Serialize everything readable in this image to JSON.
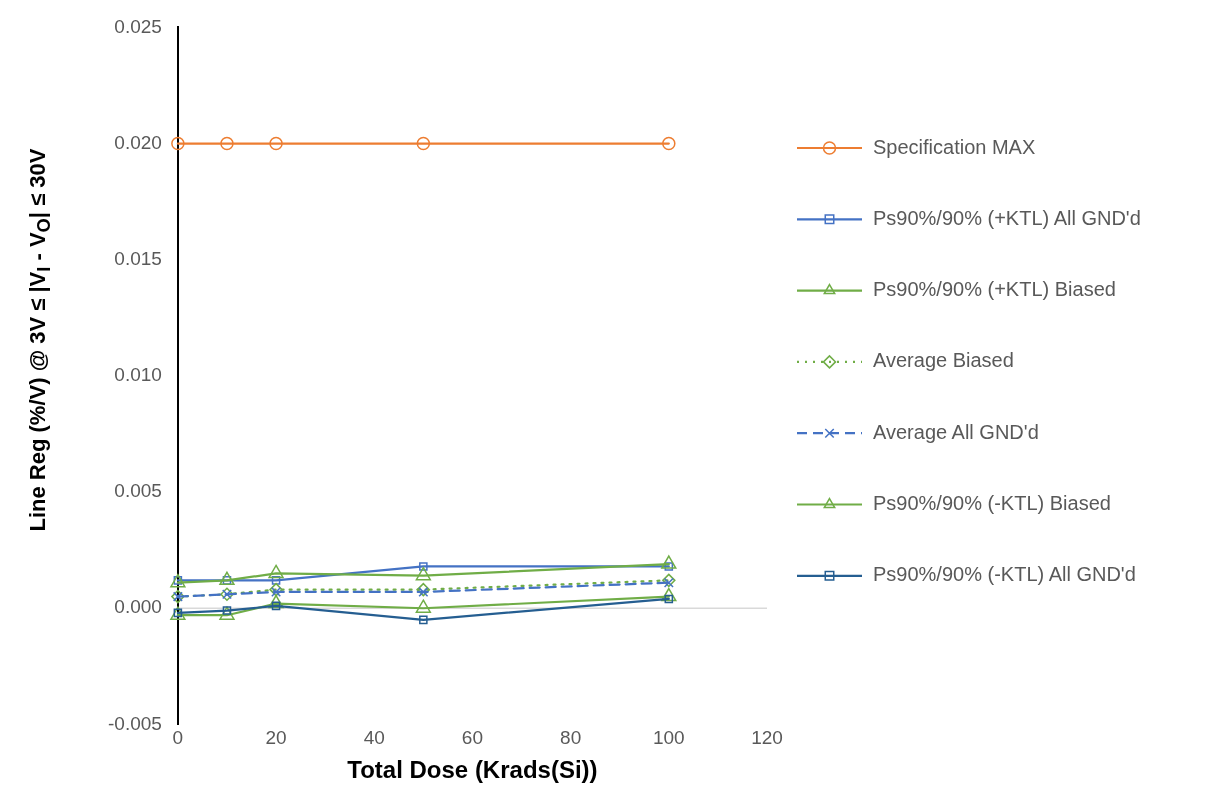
{
  "chart_data": {
    "type": "line",
    "xlabel": "Total Dose (Krads(Si))",
    "ylabel": "Line Reg (%/V) @ 3V ≤ |V$_{I}$ - V$_{O}$| ≤ 30V",
    "x": [
      0,
      10,
      20,
      50,
      100
    ],
    "xlim": [
      0,
      120
    ],
    "xticks": [
      0,
      20,
      40,
      60,
      80,
      100,
      120
    ],
    "ylim": [
      -0.005,
      0.025
    ],
    "yticks": [
      {
        "value": -0.005,
        "label": "-0.005"
      },
      {
        "value": 0,
        "label": "0.000"
      },
      {
        "value": 0.005,
        "label": "0.005"
      },
      {
        "value": 0.01,
        "label": "0.010"
      },
      {
        "value": 0.015,
        "label": "0.015"
      },
      {
        "value": 0.02,
        "label": "0.020"
      },
      {
        "value": 0.025,
        "label": "0.025"
      }
    ],
    "grid": false,
    "legend": "right",
    "ref_lines": [
      {
        "axis": "y",
        "value": 0,
        "label": null,
        "color": "#d9d9d9"
      }
    ],
    "series": [
      {
        "name": "Specification MAX",
        "color": "#ed7d31",
        "marker": "circle",
        "line_style": "solid",
        "values": [
          0.02,
          0.02,
          0.02,
          0.02,
          0.02
        ]
      },
      {
        "name": "Ps90%/90% (+KTL) All GND'd",
        "color": "#4472c4",
        "marker": "square",
        "line_style": "solid",
        "values": [
          0.0012,
          0.0012,
          0.0012,
          0.0018,
          0.0018
        ]
      },
      {
        "name": "Ps90%/90% (+KTL) Biased",
        "color": "#70ad47",
        "marker": "triangle",
        "line_style": "solid",
        "values": [
          0.0011,
          0.0012,
          0.0015,
          0.0014,
          0.0019
        ]
      },
      {
        "name": "Average Biased",
        "color": "#70ad47",
        "marker": "diamond",
        "line_style": "dotted",
        "values": [
          0.0005,
          0.0006,
          0.0008,
          0.0008,
          0.0012
        ]
      },
      {
        "name": "Average All GND'd",
        "color": "#4472c4",
        "marker": "cross",
        "line_style": "dashed",
        "values": [
          0.0005,
          0.0006,
          0.0007,
          0.0007,
          0.0011
        ]
      },
      {
        "name": "Ps90%/90% (-KTL) Biased",
        "color": "#70ad47",
        "marker": "triangle",
        "line_style": "solid",
        "values": [
          -0.0003,
          -0.0003,
          0.0002,
          0.0,
          0.0005
        ]
      },
      {
        "name": "Ps90%/90% (-KTL) All GND'd",
        "color": "#255e91",
        "marker": "square",
        "line_style": "solid",
        "values": [
          -0.0002,
          -0.0001,
          0.0001,
          -0.0005,
          0.0004
        ]
      }
    ]
  }
}
